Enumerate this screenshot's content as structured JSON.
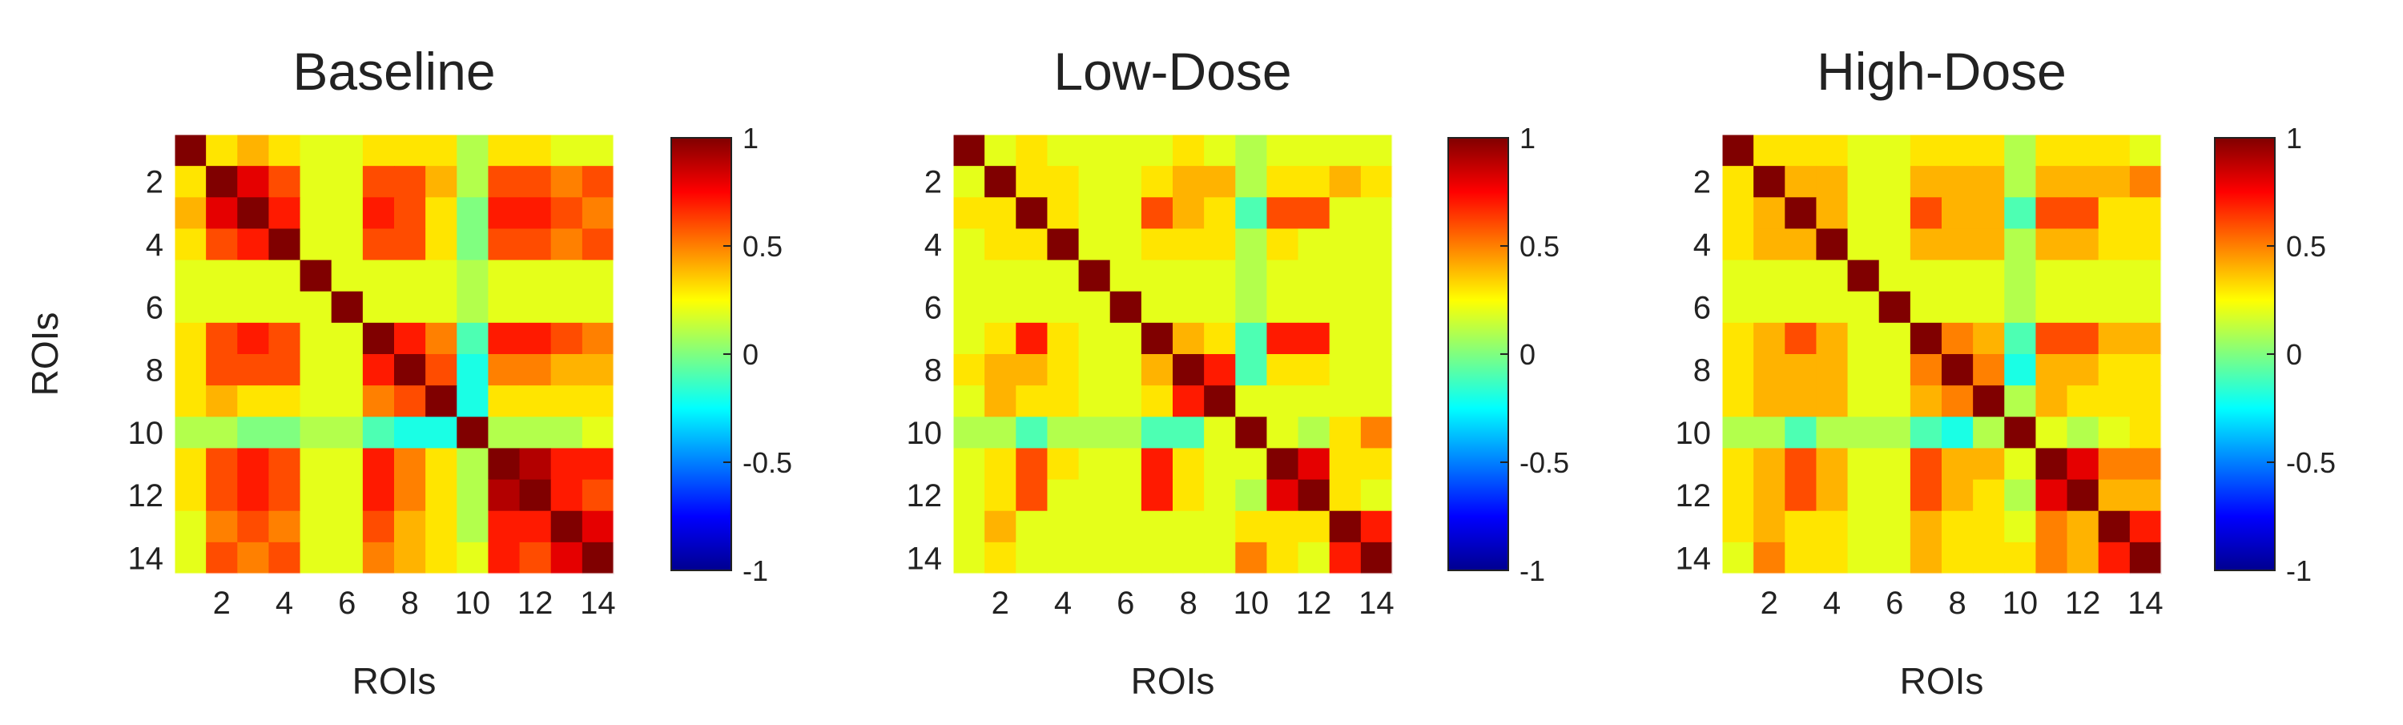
{
  "chart_data": [
    {
      "type": "heatmap",
      "title": "Baseline",
      "xlabel": "ROIs",
      "ylabel": "ROIs",
      "x_ticks": [
        "2",
        "4",
        "6",
        "8",
        "10",
        "12",
        "14"
      ],
      "y_ticks": [
        "2",
        "4",
        "6",
        "8",
        "10",
        "12",
        "14"
      ],
      "colorbar_range": [
        -1,
        1
      ],
      "colorbar_ticks": [
        "1",
        "0.5",
        "0",
        "-0.5",
        "-1"
      ],
      "matrix": [
        [
          1,
          0.3,
          0.4,
          0.3,
          0.2,
          0.2,
          0.3,
          0.3,
          0.3,
          0.1,
          0.3,
          0.3,
          0.2,
          0.2
        ],
        [
          0.3,
          1,
          0.8,
          0.6,
          0.2,
          0.2,
          0.6,
          0.6,
          0.4,
          0.1,
          0.6,
          0.6,
          0.5,
          0.6
        ],
        [
          0.4,
          0.8,
          1,
          0.7,
          0.2,
          0.2,
          0.7,
          0.6,
          0.3,
          0.0,
          0.7,
          0.7,
          0.6,
          0.5
        ],
        [
          0.3,
          0.6,
          0.7,
          1,
          0.2,
          0.2,
          0.6,
          0.6,
          0.3,
          0.0,
          0.6,
          0.6,
          0.5,
          0.6
        ],
        [
          0.2,
          0.2,
          0.2,
          0.2,
          1,
          0.2,
          0.2,
          0.2,
          0.2,
          0.1,
          0.2,
          0.2,
          0.2,
          0.2
        ],
        [
          0.2,
          0.2,
          0.2,
          0.2,
          0.2,
          1,
          0.2,
          0.2,
          0.2,
          0.1,
          0.2,
          0.2,
          0.2,
          0.2
        ],
        [
          0.3,
          0.6,
          0.7,
          0.6,
          0.2,
          0.2,
          1,
          0.7,
          0.5,
          -0.1,
          0.7,
          0.7,
          0.6,
          0.5
        ],
        [
          0.3,
          0.6,
          0.6,
          0.6,
          0.2,
          0.2,
          0.7,
          1,
          0.6,
          -0.2,
          0.5,
          0.5,
          0.4,
          0.4
        ],
        [
          0.3,
          0.4,
          0.3,
          0.3,
          0.2,
          0.2,
          0.5,
          0.6,
          1,
          -0.2,
          0.3,
          0.3,
          0.3,
          0.3
        ],
        [
          0.1,
          0.1,
          0.0,
          0.0,
          0.1,
          0.1,
          -0.1,
          -0.2,
          -0.2,
          1,
          0.1,
          0.1,
          0.1,
          0.2
        ],
        [
          0.3,
          0.6,
          0.7,
          0.6,
          0.2,
          0.2,
          0.7,
          0.5,
          0.3,
          0.1,
          1,
          0.9,
          0.7,
          0.7
        ],
        [
          0.3,
          0.6,
          0.7,
          0.6,
          0.2,
          0.2,
          0.7,
          0.5,
          0.3,
          0.1,
          0.9,
          1,
          0.7,
          0.6
        ],
        [
          0.2,
          0.5,
          0.6,
          0.5,
          0.2,
          0.2,
          0.6,
          0.4,
          0.3,
          0.1,
          0.7,
          0.7,
          1,
          0.8
        ],
        [
          0.2,
          0.6,
          0.5,
          0.6,
          0.2,
          0.2,
          0.5,
          0.4,
          0.3,
          0.2,
          0.7,
          0.6,
          0.8,
          1
        ]
      ]
    },
    {
      "type": "heatmap",
      "title": "Low-Dose",
      "xlabel": "ROIs",
      "ylabel": "",
      "x_ticks": [
        "2",
        "4",
        "6",
        "8",
        "10",
        "12",
        "14"
      ],
      "y_ticks": [
        "2",
        "4",
        "6",
        "8",
        "10",
        "12",
        "14"
      ],
      "colorbar_range": [
        -1,
        1
      ],
      "colorbar_ticks": [
        "1",
        "0.5",
        "0",
        "-0.5",
        "-1"
      ],
      "matrix": [
        [
          1,
          0.2,
          0.3,
          0.2,
          0.2,
          0.2,
          0.2,
          0.3,
          0.2,
          0.1,
          0.2,
          0.2,
          0.2,
          0.2
        ],
        [
          0.2,
          1,
          0.3,
          0.3,
          0.2,
          0.2,
          0.3,
          0.4,
          0.4,
          0.1,
          0.3,
          0.3,
          0.4,
          0.3
        ],
        [
          0.3,
          0.3,
          1,
          0.3,
          0.2,
          0.2,
          0.6,
          0.4,
          0.3,
          -0.1,
          0.6,
          0.6,
          0.2,
          0.2
        ],
        [
          0.2,
          0.3,
          0.3,
          1,
          0.2,
          0.2,
          0.3,
          0.3,
          0.3,
          0.1,
          0.3,
          0.2,
          0.2,
          0.2
        ],
        [
          0.2,
          0.2,
          0.2,
          0.2,
          1,
          0.2,
          0.2,
          0.2,
          0.2,
          0.1,
          0.2,
          0.2,
          0.2,
          0.2
        ],
        [
          0.2,
          0.2,
          0.2,
          0.2,
          0.2,
          1,
          0.2,
          0.2,
          0.2,
          0.1,
          0.2,
          0.2,
          0.2,
          0.2
        ],
        [
          0.2,
          0.3,
          0.7,
          0.3,
          0.2,
          0.2,
          1,
          0.4,
          0.3,
          -0.1,
          0.7,
          0.7,
          0.2,
          0.2
        ],
        [
          0.3,
          0.4,
          0.4,
          0.3,
          0.2,
          0.2,
          0.4,
          1,
          0.7,
          -0.1,
          0.3,
          0.3,
          0.2,
          0.2
        ],
        [
          0.2,
          0.4,
          0.3,
          0.3,
          0.2,
          0.2,
          0.3,
          0.7,
          1,
          0.2,
          0.2,
          0.2,
          0.2,
          0.2
        ],
        [
          0.1,
          0.1,
          -0.1,
          0.1,
          0.1,
          0.1,
          -0.1,
          -0.1,
          0.2,
          1,
          0.2,
          0.1,
          0.3,
          0.5
        ],
        [
          0.2,
          0.3,
          0.6,
          0.3,
          0.2,
          0.2,
          0.7,
          0.3,
          0.2,
          0.2,
          1,
          0.8,
          0.3,
          0.3
        ],
        [
          0.2,
          0.3,
          0.6,
          0.2,
          0.2,
          0.2,
          0.7,
          0.3,
          0.2,
          0.1,
          0.8,
          1,
          0.3,
          0.2
        ],
        [
          0.2,
          0.4,
          0.2,
          0.2,
          0.2,
          0.2,
          0.2,
          0.2,
          0.2,
          0.3,
          0.3,
          0.3,
          1,
          0.7
        ],
        [
          0.2,
          0.3,
          0.2,
          0.2,
          0.2,
          0.2,
          0.2,
          0.2,
          0.2,
          0.5,
          0.3,
          0.2,
          0.7,
          1
        ]
      ]
    },
    {
      "type": "heatmap",
      "title": "High-Dose",
      "xlabel": "ROIs",
      "ylabel": "",
      "x_ticks": [
        "2",
        "4",
        "6",
        "8",
        "10",
        "12",
        "14"
      ],
      "y_ticks": [
        "2",
        "4",
        "6",
        "8",
        "10",
        "12",
        "14"
      ],
      "colorbar_range": [
        -1,
        1
      ],
      "colorbar_ticks": [
        "1",
        "0.5",
        "0",
        "-0.5",
        "-1"
      ],
      "matrix": [
        [
          1,
          0.3,
          0.3,
          0.3,
          0.2,
          0.2,
          0.3,
          0.3,
          0.3,
          0.1,
          0.3,
          0.3,
          0.3,
          0.2
        ],
        [
          0.3,
          1,
          0.4,
          0.4,
          0.2,
          0.2,
          0.4,
          0.4,
          0.4,
          0.1,
          0.4,
          0.4,
          0.4,
          0.5
        ],
        [
          0.3,
          0.4,
          1,
          0.4,
          0.2,
          0.2,
          0.6,
          0.4,
          0.4,
          -0.1,
          0.6,
          0.6,
          0.3,
          0.3
        ],
        [
          0.3,
          0.4,
          0.4,
          1,
          0.2,
          0.2,
          0.4,
          0.4,
          0.4,
          0.1,
          0.4,
          0.4,
          0.3,
          0.3
        ],
        [
          0.2,
          0.2,
          0.2,
          0.2,
          1,
          0.2,
          0.2,
          0.2,
          0.2,
          0.1,
          0.2,
          0.2,
          0.2,
          0.2
        ],
        [
          0.2,
          0.2,
          0.2,
          0.2,
          0.2,
          1,
          0.2,
          0.2,
          0.2,
          0.1,
          0.2,
          0.2,
          0.2,
          0.2
        ],
        [
          0.3,
          0.4,
          0.6,
          0.4,
          0.2,
          0.2,
          1,
          0.5,
          0.4,
          -0.1,
          0.6,
          0.6,
          0.4,
          0.4
        ],
        [
          0.3,
          0.4,
          0.4,
          0.4,
          0.2,
          0.2,
          0.5,
          1,
          0.5,
          -0.2,
          0.4,
          0.4,
          0.3,
          0.3
        ],
        [
          0.3,
          0.4,
          0.4,
          0.4,
          0.2,
          0.2,
          0.4,
          0.5,
          1,
          0.1,
          0.4,
          0.3,
          0.3,
          0.3
        ],
        [
          0.1,
          0.1,
          -0.1,
          0.1,
          0.1,
          0.1,
          -0.1,
          -0.2,
          0.1,
          1,
          0.2,
          0.1,
          0.2,
          0.3
        ],
        [
          0.3,
          0.4,
          0.6,
          0.4,
          0.2,
          0.2,
          0.6,
          0.4,
          0.4,
          0.2,
          1,
          0.8,
          0.5,
          0.5
        ],
        [
          0.3,
          0.4,
          0.6,
          0.4,
          0.2,
          0.2,
          0.6,
          0.4,
          0.3,
          0.1,
          0.8,
          1,
          0.4,
          0.4
        ],
        [
          0.3,
          0.4,
          0.3,
          0.3,
          0.2,
          0.2,
          0.4,
          0.3,
          0.3,
          0.2,
          0.5,
          0.4,
          1,
          0.7
        ],
        [
          0.2,
          0.5,
          0.3,
          0.3,
          0.2,
          0.2,
          0.4,
          0.3,
          0.3,
          0.3,
          0.5,
          0.4,
          0.7,
          1
        ]
      ]
    }
  ]
}
